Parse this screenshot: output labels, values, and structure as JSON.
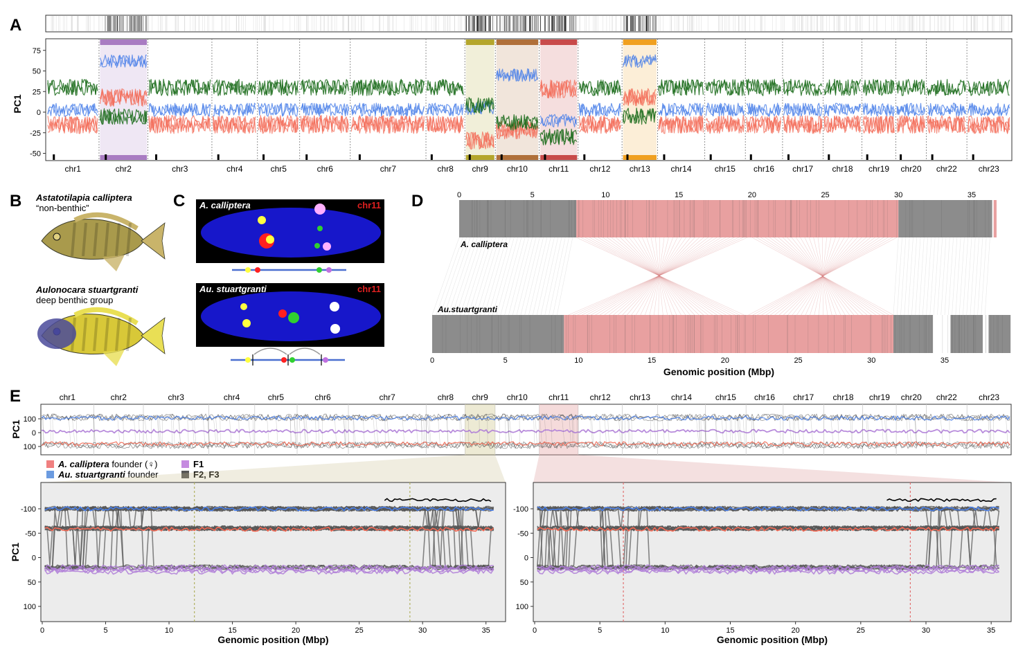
{
  "panels": {
    "a": {
      "letter": "A",
      "ylabel": "PC1",
      "yticks": [
        "75",
        "50",
        "25",
        "0",
        "-25",
        "-50"
      ]
    },
    "b": {
      "letter": "B",
      "species1": "Astatotilapia calliptera",
      "species1_desc": "“non-benthic”",
      "species2": "Aulonocara stuartgranti",
      "species2_desc": "deep benthic group"
    },
    "c": {
      "letter": "C",
      "top_label": "A. calliptera",
      "bottom_label": "Au. stuartgranti",
      "chrom_label": "chr11"
    },
    "d": {
      "letter": "D",
      "top_label": "A. calliptera",
      "bottom_label": "Au.stuartgranti",
      "top_ticks": [
        "0",
        "5",
        "10",
        "15",
        "20",
        "25",
        "30",
        "35"
      ],
      "bottom_ticks": [
        "0",
        "5",
        "10",
        "15",
        "20",
        "25",
        "30",
        "35"
      ],
      "xlabel": "Genomic position (Mbp)"
    },
    "e": {
      "letter": "E",
      "ylabel": "PC1",
      "yticks_main": [
        "100",
        "0",
        "100"
      ],
      "legend": [
        {
          "label": "A. calliptera founder (♀)",
          "color": "#f08080",
          "italic_part": "A. calliptera",
          "rest": " founder (♀)"
        },
        {
          "label": "Au. stuartgranti founder",
          "color": "#6b9be0",
          "italic_part": "Au. stuartgranti",
          "rest": " founder"
        },
        {
          "label": "F1",
          "color": "#c58be0",
          "italic_part": "",
          "rest": "F1"
        },
        {
          "label": "F2, F3",
          "color": "#555555",
          "italic_part": "",
          "rest": "F2, F3"
        }
      ],
      "zoom_left": {
        "ylabel": "PC1",
        "yticks": [
          "-100",
          "-50",
          "0",
          "50",
          "100"
        ],
        "xticks": [
          "0",
          "5",
          "10",
          "15",
          "20",
          "25",
          "30",
          "35"
        ],
        "xlabel": "Genomic position (Mbp)"
      },
      "zoom_right": {
        "yticks": [
          "-100",
          "-50",
          "0",
          "50",
          "100"
        ],
        "xticks": [
          "0",
          "5",
          "10",
          "15",
          "20",
          "25",
          "30",
          "35"
        ],
        "xlabel": "Genomic position (Mbp)"
      }
    }
  },
  "chromosomes": [
    {
      "name": "chr1",
      "rel": 1.5
    },
    {
      "name": "chr2",
      "rel": 1.4
    },
    {
      "name": "chr3",
      "rel": 1.85
    },
    {
      "name": "chr4",
      "rel": 1.3
    },
    {
      "name": "chr5",
      "rel": 1.2
    },
    {
      "name": "chr6",
      "rel": 1.45
    },
    {
      "name": "chr7",
      "rel": 2.2
    },
    {
      "name": "chr8",
      "rel": 1.1
    },
    {
      "name": "chr9",
      "rel": 0.85
    },
    {
      "name": "chr10",
      "rel": 1.25
    },
    {
      "name": "chr11",
      "rel": 1.1
    },
    {
      "name": "chr12",
      "rel": 1.25
    },
    {
      "name": "chr13",
      "rel": 1.0
    },
    {
      "name": "chr14",
      "rel": 1.35
    },
    {
      "name": "chr15",
      "rel": 1.15
    },
    {
      "name": "chr16",
      "rel": 1.05
    },
    {
      "name": "chr17",
      "rel": 1.15
    },
    {
      "name": "chr18",
      "rel": 1.1
    },
    {
      "name": "chr19",
      "rel": 0.95
    },
    {
      "name": "chr20",
      "rel": 0.85
    },
    {
      "name": "chr22",
      "rel": 1.15
    },
    {
      "name": "chr23",
      "rel": 1.25
    }
  ],
  "highlights_a": [
    {
      "chrom": "chr2",
      "color": "#a97cc2"
    },
    {
      "chrom": "chr9",
      "color": "#b4a62c"
    },
    {
      "chrom": "chr10",
      "color": "#b0703a"
    },
    {
      "chrom": "chr11",
      "color": "#c84a4a"
    },
    {
      "chrom": "chr13",
      "color": "#f0a020"
    }
  ],
  "colors": {
    "green": "#1a6b1a",
    "blue": "#4a7fe8",
    "salmon": "#f36a55",
    "purple": "#b07fd8",
    "dark": "#555555",
    "pink_block": "#e8a0a0",
    "grey_block": "#8c8c8c"
  }
}
